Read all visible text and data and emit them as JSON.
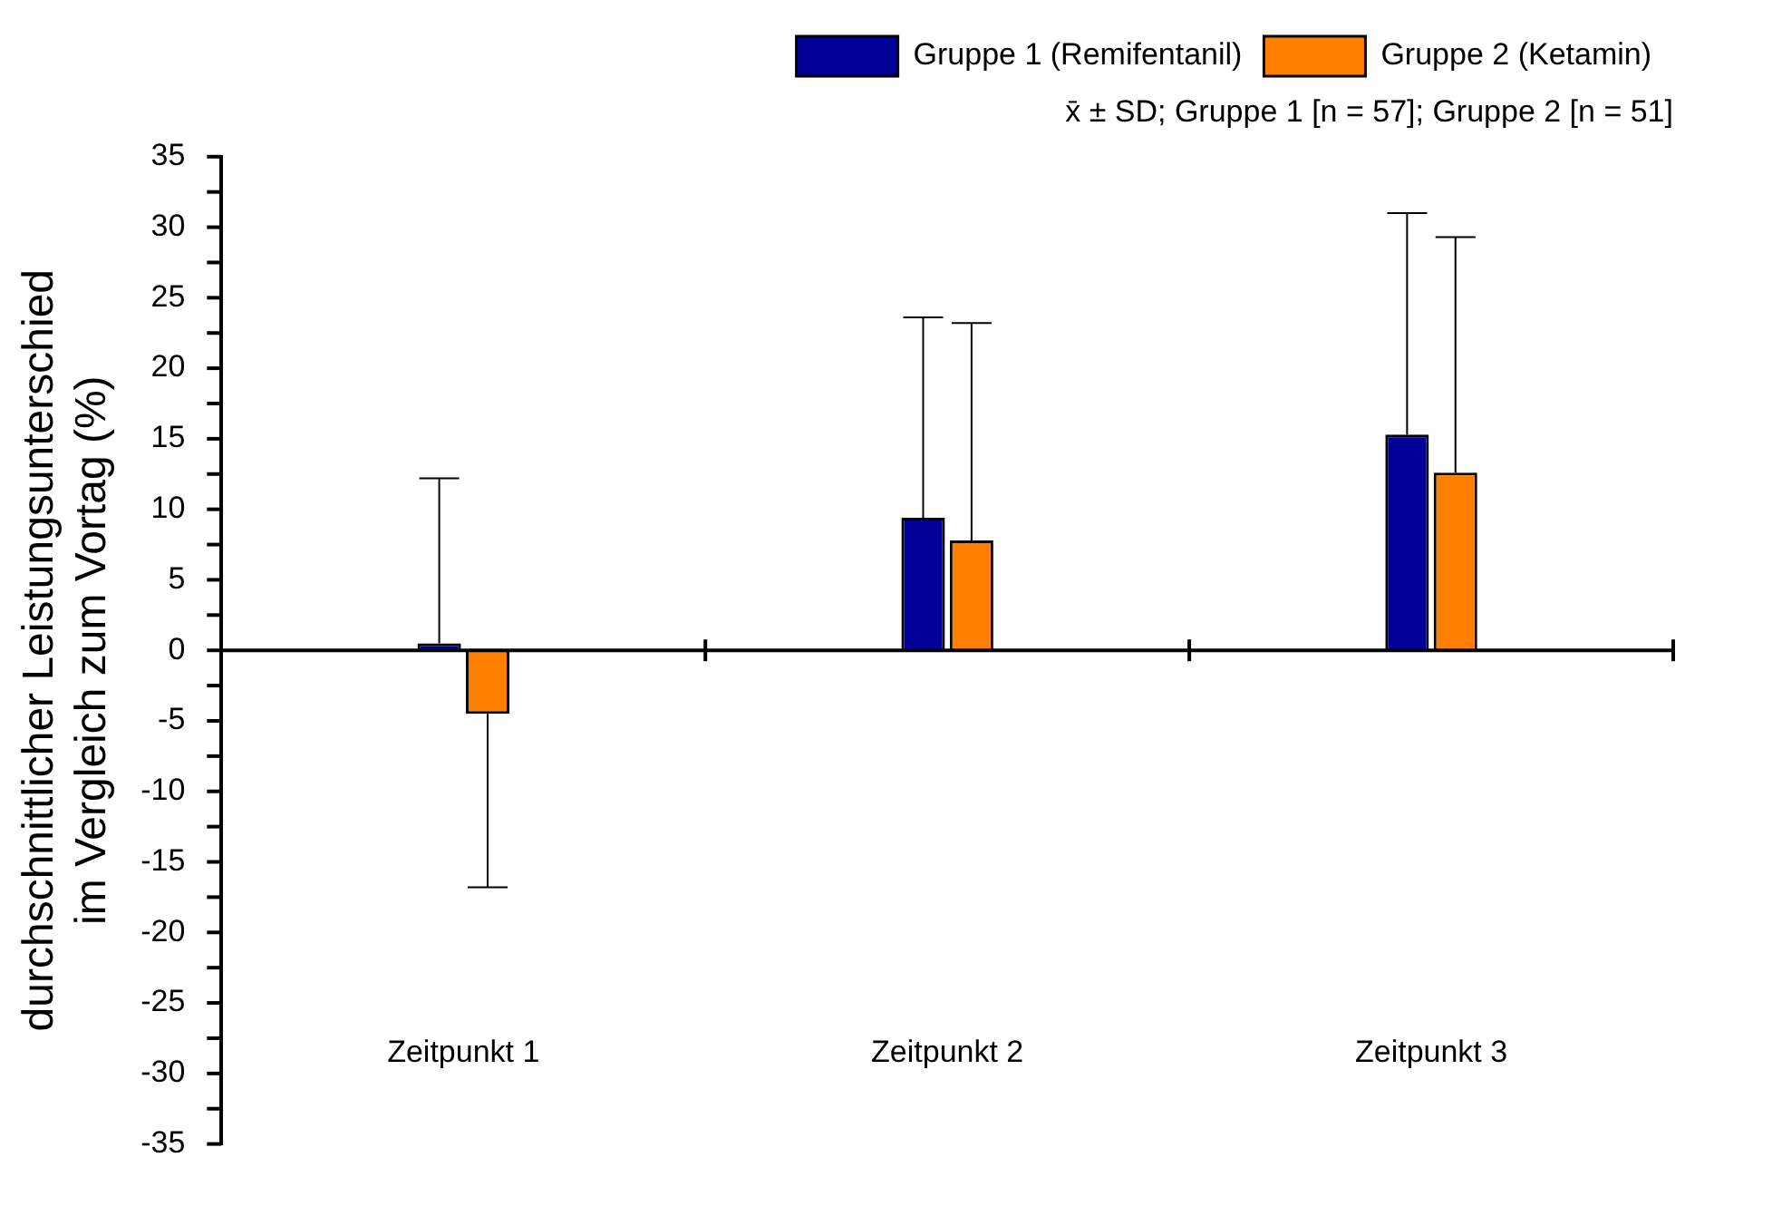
{
  "chart_data": {
    "type": "bar",
    "ylabel": "durchschnittlicher Leistungsunterschied\nim Vergleich zum Vortag (%)",
    "categories": [
      "Zeitpunkt 1",
      "Zeitpunkt 2",
      "Zeitpunkt 3"
    ],
    "series": [
      {
        "name": "Gruppe 1 (Remifentanil)",
        "color": "#000099",
        "values": [
          0.5,
          9.4,
          15.3
        ],
        "errors": [
          [
            0.5,
            12.2
          ],
          [
            9.4,
            23.6
          ],
          [
            15.3,
            31.0
          ]
        ]
      },
      {
        "name": "Gruppe 2 (Ketamin)",
        "color": "#ff8000",
        "values": [
          -4.5,
          7.8,
          12.6
        ],
        "errors": [
          [
            -16.8,
            -4.5
          ],
          [
            7.8,
            23.2
          ],
          [
            12.6,
            29.3
          ]
        ]
      }
    ],
    "ylim": [
      -35,
      35
    ],
    "yticks": [
      -35,
      {
        "value": -32.5,
        "label": null
      },
      -30,
      {
        "value": -27.5,
        "label": null
      },
      -25,
      {
        "value": -22.5,
        "label": null
      },
      -20,
      {
        "value": -17.5,
        "label": null
      },
      -15,
      {
        "value": -12.5,
        "label": null
      },
      -10,
      {
        "value": -7.5,
        "label": null
      },
      -5,
      {
        "value": -2.5,
        "label": null
      },
      0,
      {
        "value": 2.5,
        "label": null
      },
      5,
      {
        "value": 7.5,
        "label": null
      },
      10,
      {
        "value": 12.5,
        "label": null
      },
      15,
      {
        "value": 17.5,
        "label": null
      },
      20,
      {
        "value": 22.5,
        "label": null
      },
      25,
      {
        "value": 27.5,
        "label": null
      },
      30,
      {
        "value": 32.5,
        "label": null
      },
      35
    ],
    "ref_lines": [
      {
        "axis": "y",
        "value": 0,
        "color": "#000000",
        "line_style": "solid"
      }
    ],
    "legend": "top right",
    "grid": false,
    "annotations": [
      "x̄ ± SD; Gruppe 1 [n = 57]; Gruppe 2 [n = 51]"
    ]
  }
}
